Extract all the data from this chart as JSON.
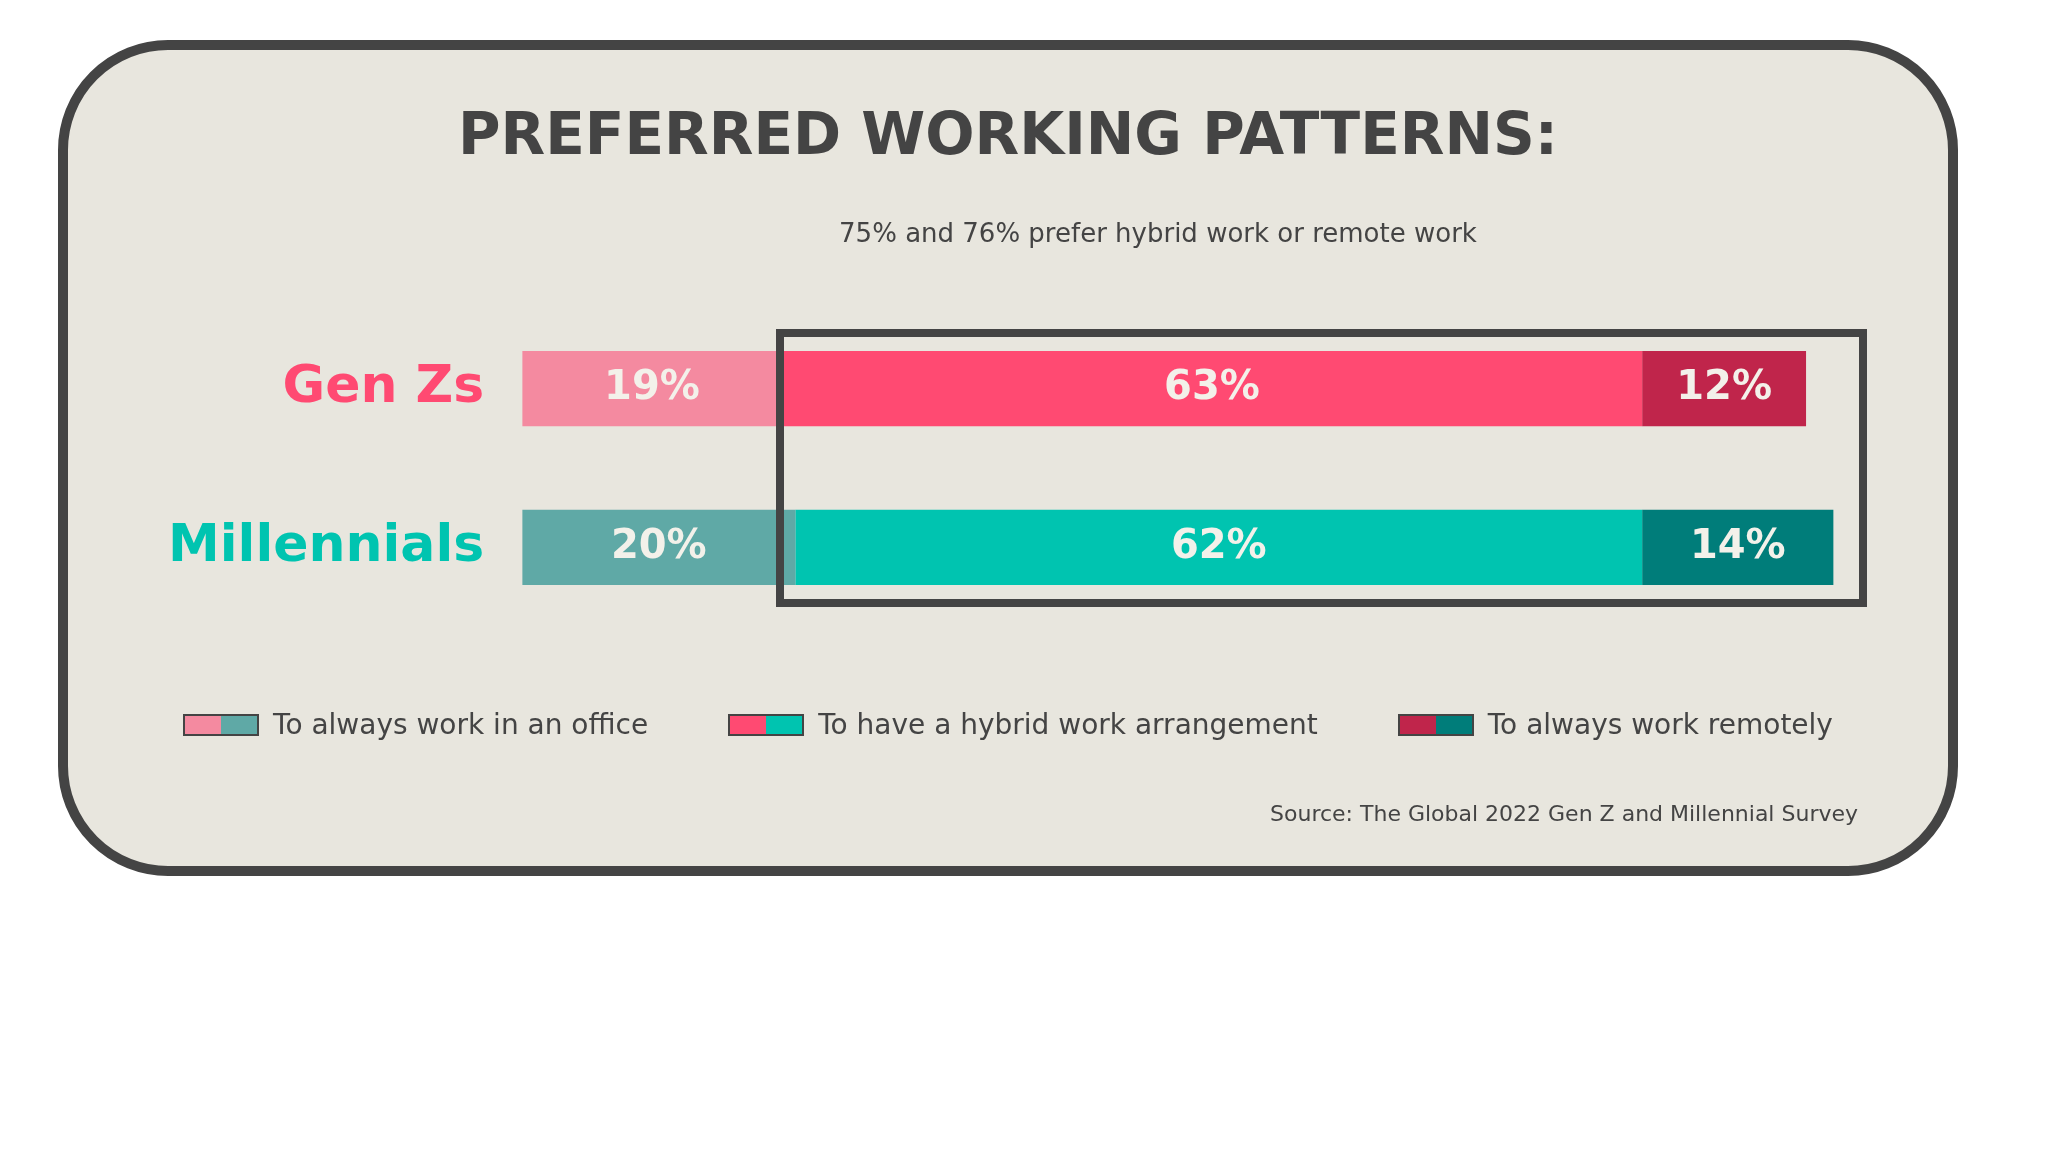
{
  "chart_data": {
    "type": "bar",
    "orientation": "horizontal",
    "stacked": true,
    "title": "PREFERRED WORKING PATTERNS:",
    "categories": [
      "Gen Zs",
      "Millennials"
    ],
    "series": [
      {
        "name": "To always work in an office",
        "colors": [
          "#f48aa0",
          "#5fa9a6"
        ],
        "values": [
          19,
          20
        ],
        "value_labels": [
          "19%",
          "20%"
        ]
      },
      {
        "name": "To have a hybrid work arrangement",
        "colors": [
          "#ff4a72",
          "#00c4b0"
        ],
        "values": [
          63,
          62
        ],
        "value_labels": [
          "63%",
          "62%"
        ]
      },
      {
        "name": "To always work remotely",
        "colors": [
          "#c0254b",
          "#007d7a"
        ],
        "values": [
          12,
          14
        ],
        "value_labels": [
          "12%",
          "14%"
        ]
      }
    ],
    "legend": "bottom",
    "annotations": [
      "75% and 76% prefer hybrid work or remote work",
      "Source: The Global 2022 Gen Z and Millennial Survey"
    ]
  }
}
